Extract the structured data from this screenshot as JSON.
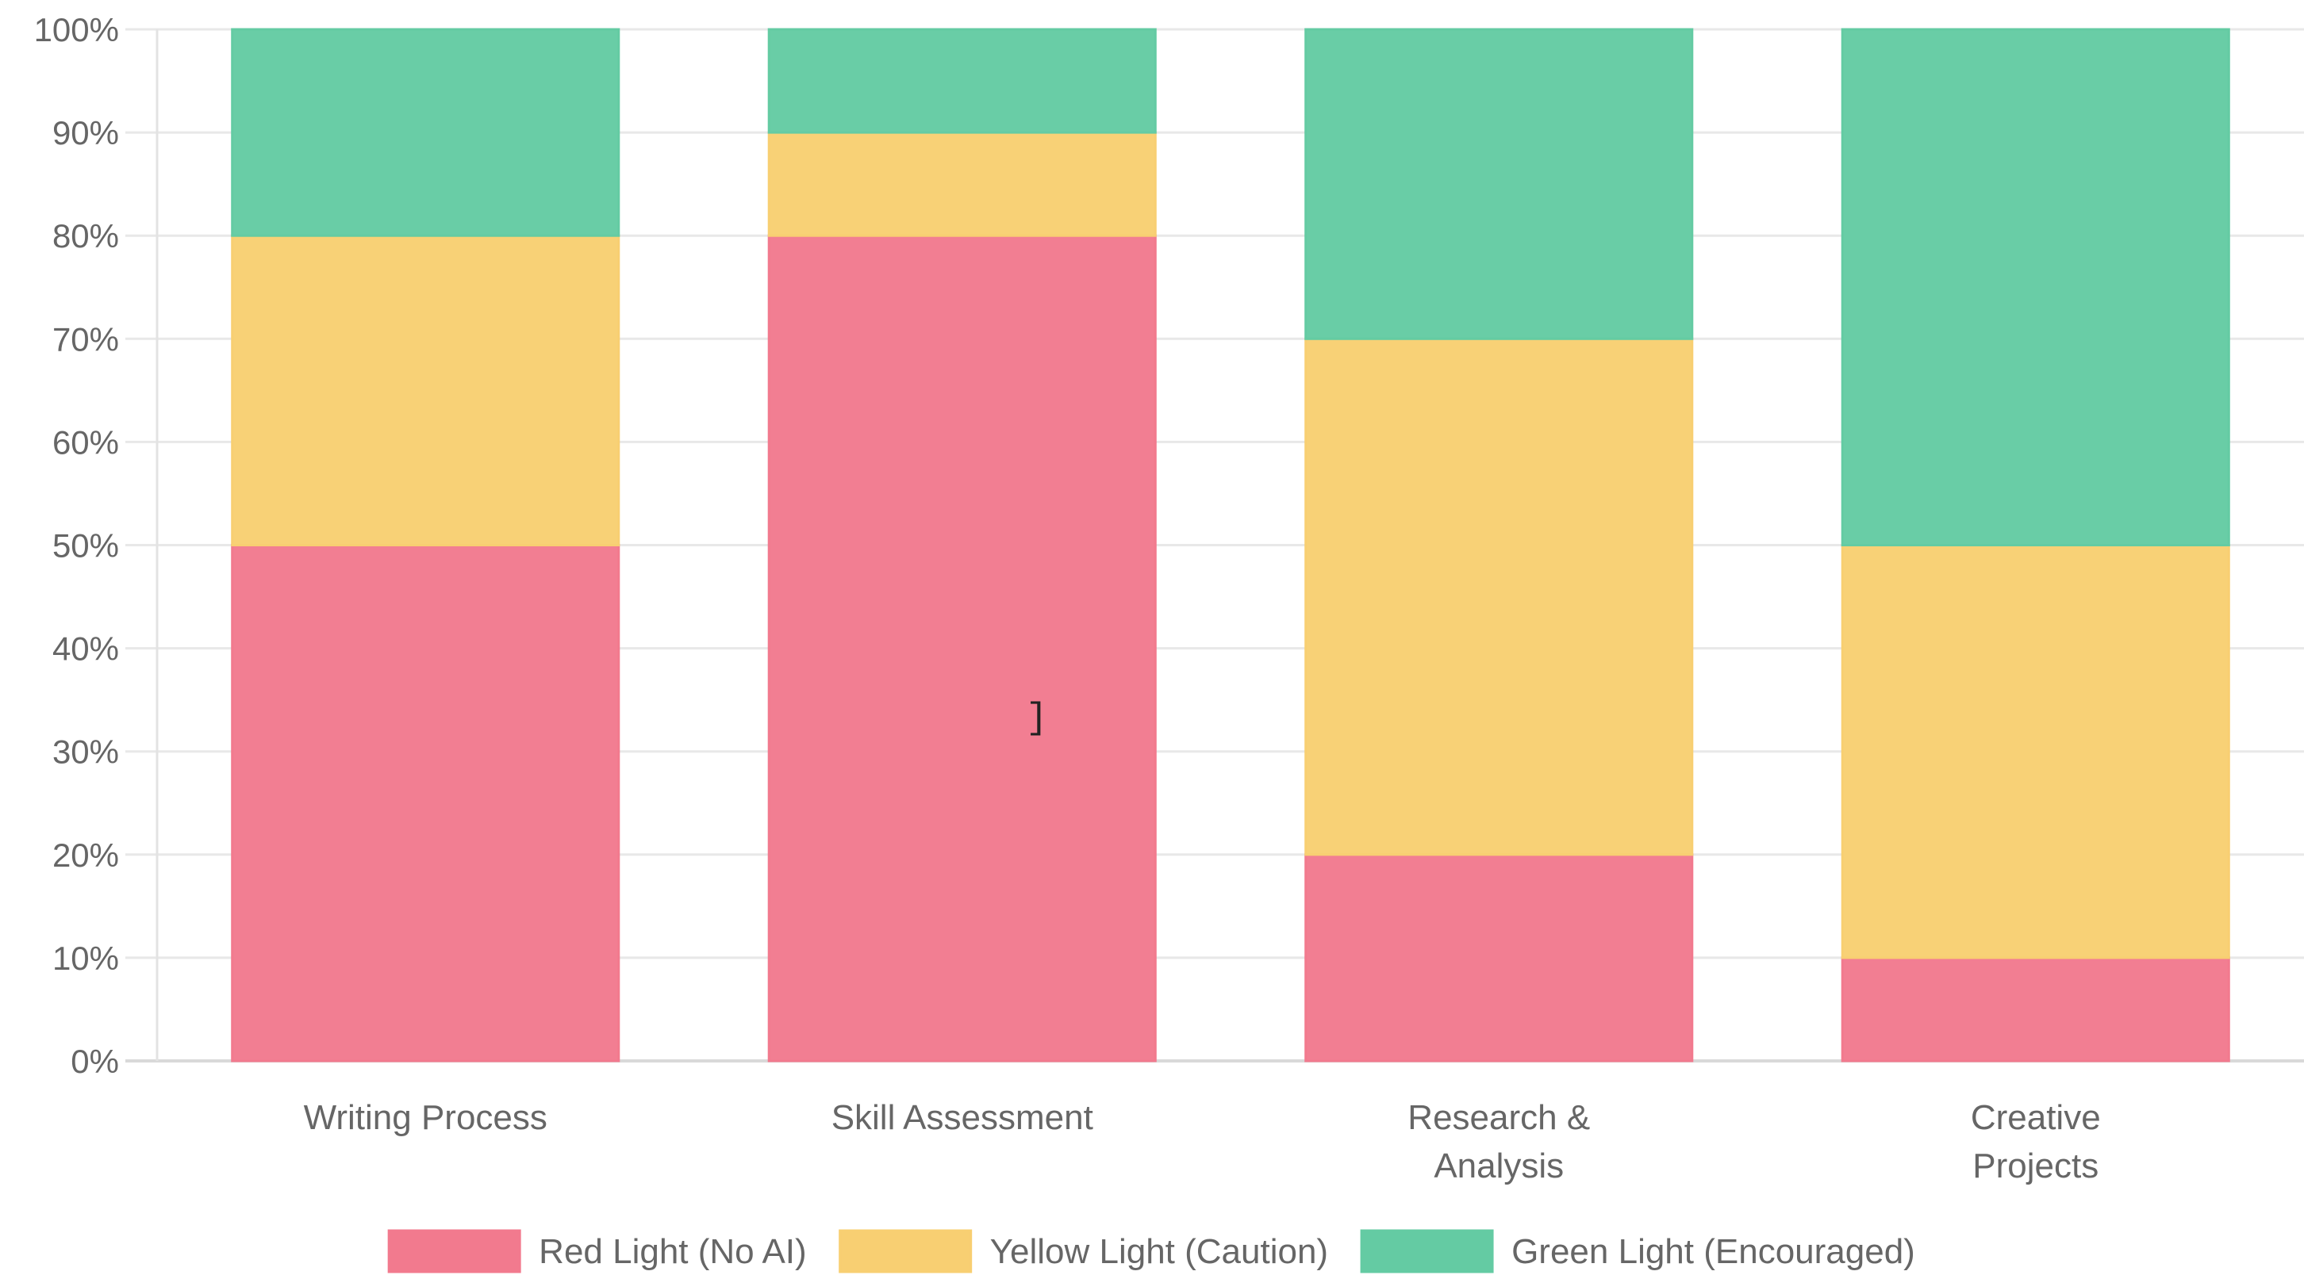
{
  "chart_data": {
    "type": "bar",
    "stacked": true,
    "title": "",
    "xlabel": "",
    "ylabel": "",
    "ylim": [
      0,
      100
    ],
    "y_ticks": [
      "0%",
      "10%",
      "20%",
      "30%",
      "40%",
      "50%",
      "60%",
      "70%",
      "80%",
      "90%",
      "100%"
    ],
    "grid": true,
    "legend_position": "bottom",
    "categories": [
      [
        "Writing Process"
      ],
      [
        "Skill Assessment"
      ],
      [
        "Research &",
        "Analysis"
      ],
      [
        "Creative",
        "Projects"
      ]
    ],
    "series": [
      {
        "name": "Red Light (No AI)",
        "color": "#f27a8e",
        "values": [
          50,
          80,
          20,
          10
        ]
      },
      {
        "name": "Yellow Light (Caution)",
        "color": "#f8cf72",
        "values": [
          30,
          10,
          50,
          40
        ]
      },
      {
        "name": "Green Light (Encouraged)",
        "color": "#64cba3",
        "values": [
          20,
          10,
          30,
          50
        ]
      }
    ]
  },
  "cursor": {
    "glyph": "]",
    "icon": "text-cursor-icon"
  }
}
